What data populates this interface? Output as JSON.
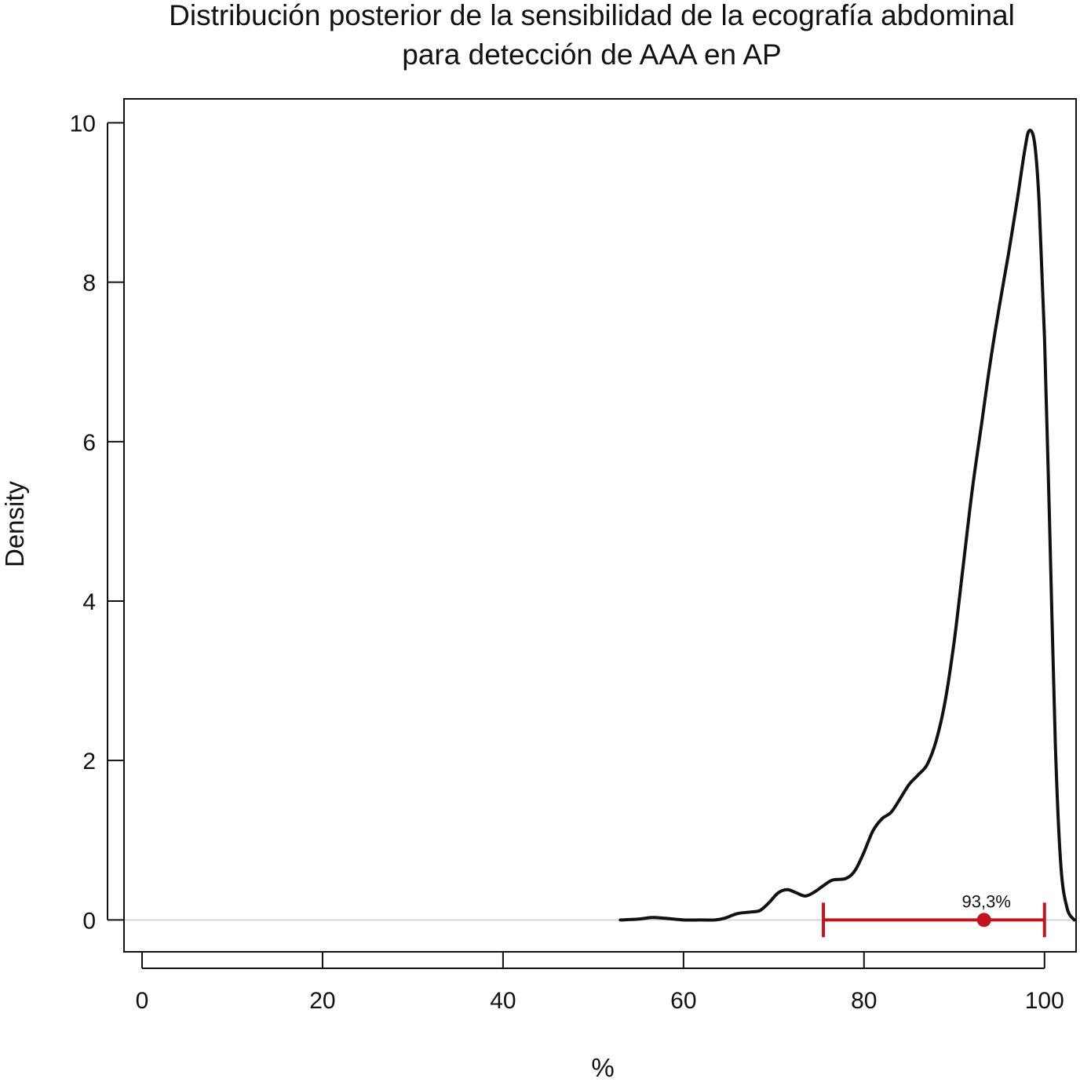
{
  "chart_data": {
    "type": "line",
    "title_lines": [
      "Distribución posterior de la sensibilidad de la ecografía abdominal",
      "para detección de AAA en AP"
    ],
    "xlabel": "%",
    "ylabel": "Density",
    "xlim": [
      -2,
      103.5
    ],
    "ylim": [
      -0.4,
      10.3
    ],
    "x_ticks": [
      0,
      20,
      40,
      60,
      80,
      100
    ],
    "y_ticks": [
      0,
      2,
      4,
      6,
      8,
      10
    ],
    "grid": false,
    "reference_line_y": 0,
    "series": [
      {
        "color": "#111111",
        "points": [
          [
            53.0,
            0.0
          ],
          [
            55.0,
            0.01
          ],
          [
            56.5,
            0.03
          ],
          [
            58.0,
            0.02
          ],
          [
            60.0,
            0.0
          ],
          [
            62.0,
            0.0
          ],
          [
            63.5,
            0.0
          ],
          [
            64.5,
            0.02
          ],
          [
            66.0,
            0.08
          ],
          [
            67.5,
            0.1
          ],
          [
            68.5,
            0.12
          ],
          [
            69.5,
            0.22
          ],
          [
            70.5,
            0.34
          ],
          [
            71.5,
            0.38
          ],
          [
            72.5,
            0.34
          ],
          [
            73.5,
            0.3
          ],
          [
            74.5,
            0.35
          ],
          [
            75.5,
            0.43
          ],
          [
            76.5,
            0.5
          ],
          [
            78.0,
            0.52
          ],
          [
            79.0,
            0.62
          ],
          [
            80.0,
            0.85
          ],
          [
            81.0,
            1.12
          ],
          [
            82.0,
            1.27
          ],
          [
            83.0,
            1.35
          ],
          [
            84.0,
            1.52
          ],
          [
            85.0,
            1.7
          ],
          [
            86.0,
            1.82
          ],
          [
            87.0,
            1.95
          ],
          [
            88.0,
            2.25
          ],
          [
            89.0,
            2.75
          ],
          [
            90.0,
            3.5
          ],
          [
            91.0,
            4.45
          ],
          [
            92.0,
            5.4
          ],
          [
            93.0,
            6.2
          ],
          [
            94.0,
            7.0
          ],
          [
            95.0,
            7.7
          ],
          [
            96.0,
            8.35
          ],
          [
            97.0,
            9.05
          ],
          [
            97.8,
            9.65
          ],
          [
            98.3,
            9.9
          ],
          [
            98.9,
            9.75
          ],
          [
            99.4,
            9.0
          ],
          [
            100.0,
            7.3
          ],
          [
            100.6,
            4.8
          ],
          [
            101.2,
            2.2
          ],
          [
            101.8,
            0.7
          ],
          [
            102.5,
            0.15
          ],
          [
            103.3,
            0.0
          ]
        ]
      }
    ],
    "credible_interval": {
      "low": 75.5,
      "high": 100.0,
      "point_estimate": 93.3,
      "label": "93,3%",
      "color": "#c0141e"
    }
  }
}
